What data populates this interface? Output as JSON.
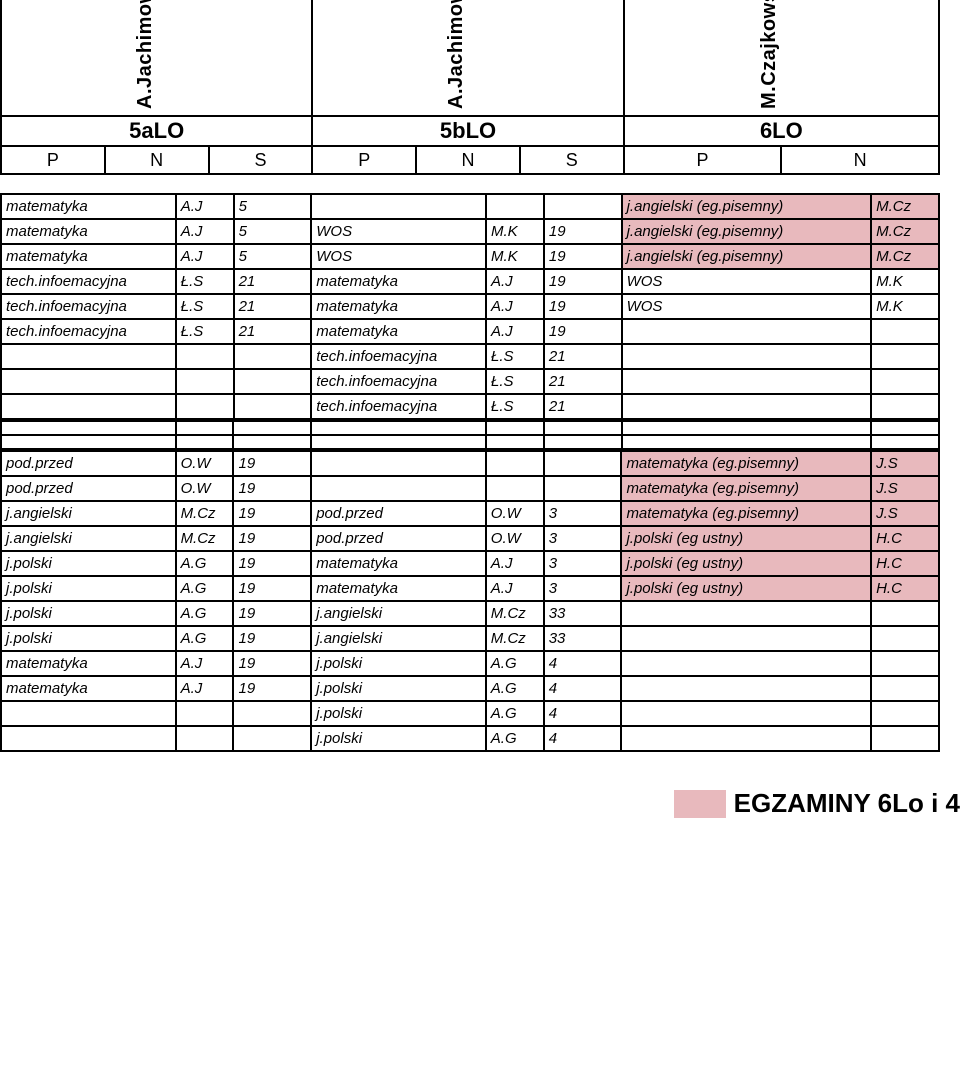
{
  "colors": {
    "pink": "#e8b9bd",
    "border": "#000000",
    "bg": "#ffffff"
  },
  "header": {
    "names": [
      "A.Jachimowska",
      "A.Jachimowska",
      "M.Czajkowska"
    ],
    "classes": [
      "5aLO",
      "5bLO",
      "6LO"
    ],
    "sub": [
      [
        "P",
        "N",
        "S"
      ],
      [
        "P",
        "N",
        "S"
      ],
      [
        "P",
        "N"
      ]
    ]
  },
  "block1": {
    "rows": [
      {
        "a": "matematyka",
        "b": "A.J",
        "c": "5",
        "d": "",
        "e": "",
        "f": "",
        "g": "j.angielski (eg.pisemny)",
        "h": "M.Cz",
        "pink": true,
        "ital_a": true
      },
      {
        "a": "matematyka",
        "b": "A.J",
        "c": "5",
        "d": "WOS",
        "e": "M.K",
        "f": "19",
        "g": "j.angielski (eg.pisemny)",
        "h": "M.Cz",
        "pink": true,
        "ital_a": true,
        "ital_d": true
      },
      {
        "a": "matematyka",
        "b": "A.J",
        "c": "5",
        "d": "WOS",
        "e": "M.K",
        "f": "19",
        "g": "j.angielski (eg.pisemny)",
        "h": "M.Cz",
        "pink": true,
        "ital_a": true,
        "ital_d": true
      },
      {
        "a": "tech.infoemacyjna",
        "b": "Ł.S",
        "c": "21",
        "d": "matematyka",
        "e": "A.J",
        "f": "19",
        "g": "WOS",
        "h": "M.K",
        "ital_a": true,
        "ital_d": true,
        "ital_g": true
      },
      {
        "a": "tech.infoemacyjna",
        "b": "Ł.S",
        "c": "21",
        "d": "matematyka",
        "e": "A.J",
        "f": "19",
        "g": "WOS",
        "h": "M.K",
        "ital_a": true,
        "ital_d": true,
        "ital_g": true
      },
      {
        "a": "tech.infoemacyjna",
        "b": "Ł.S",
        "c": "21",
        "d": "matematyka",
        "e": "A.J",
        "f": "19",
        "g": "",
        "h": "",
        "ital_a": true,
        "ital_d": true
      },
      {
        "a": "",
        "b": "",
        "c": "",
        "d": "tech.infoemacyjna",
        "e": "Ł.S",
        "f": "21",
        "g": "",
        "h": "",
        "ital_d": true
      },
      {
        "a": "",
        "b": "",
        "c": "",
        "d": "tech.infoemacyjna",
        "e": "Ł.S",
        "f": "21",
        "g": "",
        "h": "",
        "ital_d": true
      },
      {
        "a": "",
        "b": "",
        "c": "",
        "d": "tech.infoemacyjna",
        "e": "Ł.S",
        "f": "21",
        "g": "",
        "h": "",
        "ital_d": true
      }
    ]
  },
  "block2": {
    "rows": [
      {
        "a": "pod.przed",
        "b": "O.W",
        "c": "19",
        "d": "",
        "e": "",
        "f": "",
        "g": "matematyka (eg.pisemny)",
        "h": "J.S",
        "pink": true,
        "ital_a": true
      },
      {
        "a": "pod.przed",
        "b": "O.W",
        "c": "19",
        "d": "",
        "e": "",
        "f": "",
        "g": "matematyka (eg.pisemny)",
        "h": "J.S",
        "pink": true,
        "ital_a": true
      },
      {
        "a": "j.angielski",
        "b": "M.Cz",
        "c": "19",
        "d": "pod.przed",
        "e": "O.W",
        "f": "3",
        "g": "matematyka (eg.pisemny)",
        "h": "J.S",
        "pink": true,
        "ital_a": true,
        "ital_d": true
      },
      {
        "a": "j.angielski",
        "b": "M.Cz",
        "c": "19",
        "d": "pod.przed",
        "e": "O.W",
        "f": "3",
        "g": "j.polski (eg ustny)",
        "h": "H.C",
        "pink": true,
        "ital_a": true,
        "ital_d": true
      },
      {
        "a": "j.polski",
        "b": "A.G",
        "c": "19",
        "d": "matematyka",
        "e": "A.J",
        "f": "3",
        "g": "j.polski (eg ustny)",
        "h": "H.C",
        "pink": true,
        "ital_a": true,
        "ital_d": true
      },
      {
        "a": "j.polski",
        "b": "A.G",
        "c": "19",
        "d": "matematyka",
        "e": "A.J",
        "f": "3",
        "g": "j.polski (eg ustny)",
        "h": "H.C",
        "pink": true,
        "ital_a": true,
        "ital_d": true
      },
      {
        "a": "j.polski",
        "b": "A.G",
        "c": "19",
        "d": "j.angielski",
        "e": "M.Cz",
        "f": "33",
        "g": "",
        "h": "",
        "ital_a": true,
        "ital_d": true
      },
      {
        "a": "j.polski",
        "b": "A.G",
        "c": "19",
        "d": "j.angielski",
        "e": "M.Cz",
        "f": "33",
        "g": "",
        "h": "",
        "ital_a": true,
        "ital_d": true
      },
      {
        "a": "matematyka",
        "b": "A.J",
        "c": "19",
        "d": "j.polski",
        "e": "A.G",
        "f": "4",
        "g": "",
        "h": "",
        "ital_a": true,
        "ital_d": true
      },
      {
        "a": "matematyka",
        "b": "A.J",
        "c": "19",
        "d": "j.polski",
        "e": "A.G",
        "f": "4",
        "g": "",
        "h": "",
        "ital_a": true,
        "ital_d": true
      },
      {
        "a": "",
        "b": "",
        "c": "",
        "d": "j.polski",
        "e": "A.G",
        "f": "4",
        "g": "",
        "h": "",
        "ital_d": true
      },
      {
        "a": "",
        "b": "",
        "c": "",
        "d": "j.polski",
        "e": "A.G",
        "f": "4",
        "g": "",
        "h": "",
        "ital_d": true
      }
    ]
  },
  "footer": {
    "label": "EGZAMINY 6Lo i 4"
  }
}
